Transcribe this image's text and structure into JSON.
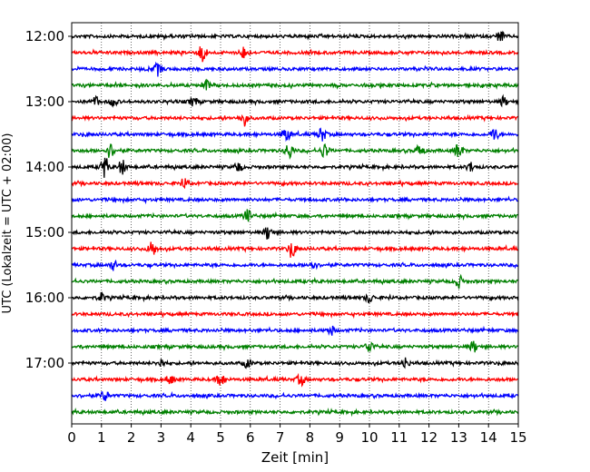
{
  "chart_data": {
    "type": "line",
    "xlabel": "Zeit  [min]",
    "ylabel": "UTC (Lokalzeit = UTC + 02:00)",
    "xlim": [
      0,
      15
    ],
    "x_ticks": [
      "0",
      "1",
      "2",
      "3",
      "4",
      "5",
      "6",
      "7",
      "8",
      "9",
      "10",
      "11",
      "12",
      "13",
      "14",
      "15"
    ],
    "y_tick_labels": [
      "12:00",
      "13:00",
      "14:00",
      "15:00",
      "16:00",
      "17:00"
    ],
    "grid_x": true,
    "series_colors": [
      "#000000",
      "#ff0000",
      "#0000ff",
      "#008000"
    ],
    "traces": [
      {
        "start": "12:00",
        "color": "#000000",
        "events": [
          [
            14.4,
            6
          ]
        ]
      },
      {
        "start": "12:15",
        "color": "#ff0000",
        "events": [
          [
            4.4,
            10
          ],
          [
            5.8,
            7
          ]
        ]
      },
      {
        "start": "12:30",
        "color": "#0000ff",
        "events": [
          [
            2.9,
            7
          ]
        ]
      },
      {
        "start": "12:45",
        "color": "#008000",
        "events": [
          [
            4.5,
            6
          ]
        ]
      },
      {
        "start": "13:00",
        "color": "#000000",
        "events": [
          [
            0.8,
            5
          ],
          [
            1.4,
            5
          ],
          [
            4.1,
            5
          ],
          [
            14.5,
            5
          ]
        ]
      },
      {
        "start": "13:15",
        "color": "#ff0000",
        "events": [
          [
            5.8,
            8
          ]
        ]
      },
      {
        "start": "13:30",
        "color": "#0000ff",
        "events": [
          [
            7.2,
            8
          ],
          [
            8.4,
            8
          ],
          [
            14.2,
            7
          ]
        ]
      },
      {
        "start": "13:45",
        "color": "#008000",
        "events": [
          [
            1.3,
            8
          ],
          [
            7.3,
            9
          ],
          [
            8.5,
            8
          ],
          [
            11.7,
            7
          ],
          [
            13.0,
            9
          ]
        ]
      },
      {
        "start": "14:00",
        "color": "#000000",
        "events": [
          [
            1.1,
            11
          ],
          [
            1.7,
            8
          ],
          [
            5.6,
            5
          ],
          [
            13.4,
            5
          ]
        ]
      },
      {
        "start": "14:15",
        "color": "#ff0000",
        "events": [
          [
            3.8,
            5
          ]
        ]
      },
      {
        "start": "14:30",
        "color": "#0000ff",
        "events": []
      },
      {
        "start": "14:45",
        "color": "#008000",
        "events": [
          [
            5.9,
            7
          ]
        ]
      },
      {
        "start": "15:00",
        "color": "#000000",
        "events": [
          [
            6.6,
            8
          ]
        ]
      },
      {
        "start": "15:15",
        "color": "#ff0000",
        "events": [
          [
            2.7,
            9
          ],
          [
            7.4,
            9
          ]
        ]
      },
      {
        "start": "15:30",
        "color": "#0000ff",
        "events": [
          [
            1.4,
            5
          ],
          [
            8.1,
            5
          ]
        ]
      },
      {
        "start": "15:45",
        "color": "#008000",
        "events": [
          [
            13.0,
            7
          ]
        ]
      },
      {
        "start": "16:00",
        "color": "#000000",
        "events": [
          [
            1.0,
            5
          ],
          [
            10.0,
            5
          ]
        ]
      },
      {
        "start": "16:15",
        "color": "#ff0000",
        "events": []
      },
      {
        "start": "16:30",
        "color": "#0000ff",
        "events": [
          [
            8.7,
            5
          ]
        ]
      },
      {
        "start": "16:45",
        "color": "#008000",
        "events": [
          [
            10.0,
            7
          ],
          [
            13.5,
            6
          ]
        ]
      },
      {
        "start": "17:00",
        "color": "#000000",
        "events": [
          [
            3.0,
            5
          ],
          [
            5.9,
            5
          ],
          [
            11.2,
            6
          ]
        ]
      },
      {
        "start": "17:15",
        "color": "#ff0000",
        "events": [
          [
            3.3,
            5
          ],
          [
            5.0,
            7
          ],
          [
            7.7,
            6
          ]
        ]
      },
      {
        "start": "17:30",
        "color": "#0000ff",
        "events": [
          [
            1.1,
            6
          ]
        ]
      },
      {
        "start": "17:45",
        "color": "#008000",
        "events": []
      }
    ]
  }
}
